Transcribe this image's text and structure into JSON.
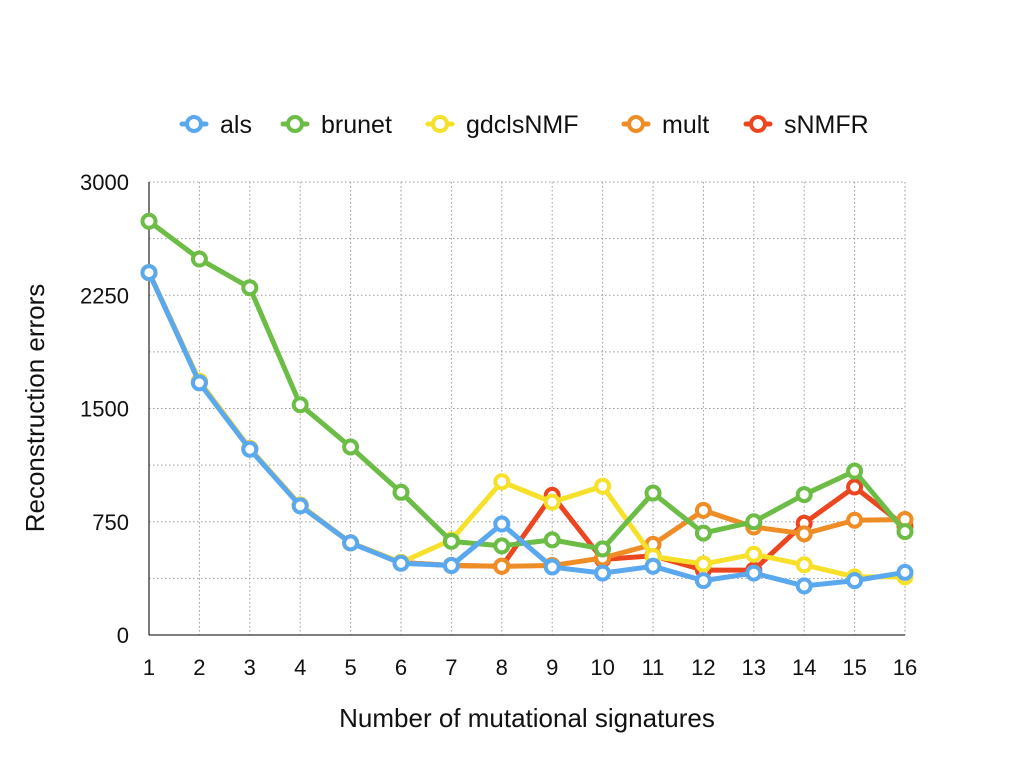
{
  "chart_data": {
    "type": "line",
    "title": "",
    "xlabel": "Number of mutational signatures",
    "ylabel": "Reconstruction errors",
    "x": [
      1,
      2,
      3,
      4,
      5,
      6,
      7,
      8,
      9,
      10,
      11,
      12,
      13,
      14,
      15,
      16
    ],
    "xlim": [
      1,
      16
    ],
    "ylim": [
      0,
      3000
    ],
    "yticks": [
      0,
      750,
      1500,
      2250,
      3000
    ],
    "grid": true,
    "legend_position": "top",
    "series": [
      {
        "name": "als",
        "color": "#5aa8ee",
        "values": [
          2400,
          1670,
          1230,
          855,
          610,
          475,
          460,
          735,
          450,
          410,
          455,
          360,
          410,
          325,
          360,
          415
        ]
      },
      {
        "name": "brunet",
        "color": "#6bbd45",
        "values": [
          2740,
          2490,
          2300,
          1525,
          1245,
          945,
          620,
          590,
          630,
          570,
          940,
          675,
          750,
          930,
          1085,
          685
        ]
      },
      {
        "name": "gdclsNMF",
        "color": "#f6e02a",
        "values": [
          2400,
          1680,
          1235,
          860,
          610,
          480,
          630,
          1015,
          880,
          985,
          520,
          470,
          535,
          465,
          385,
          385
        ]
      },
      {
        "name": "mult",
        "color": "#ee8c25",
        "values": [
          2400,
          1680,
          1235,
          860,
          610,
          480,
          460,
          455,
          460,
          510,
          600,
          825,
          715,
          670,
          760,
          765
        ]
      },
      {
        "name": "sNMFR",
        "color": "#ec4621",
        "values": [
          2400,
          1680,
          1235,
          860,
          610,
          480,
          460,
          455,
          925,
          500,
          525,
          430,
          430,
          740,
          980,
          720
        ]
      }
    ]
  }
}
